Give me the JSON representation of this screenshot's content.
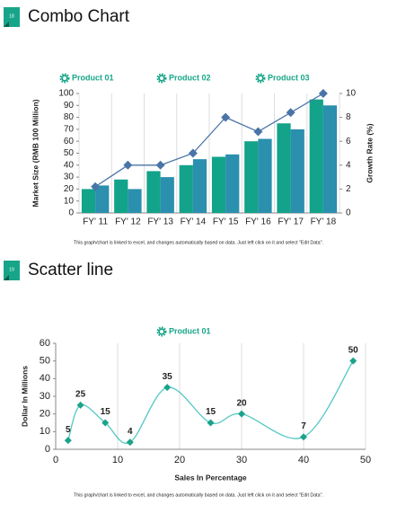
{
  "slides": [
    {
      "number": "18",
      "title": "Combo Chart",
      "note": "This graph/chart is linked to excel, and changes automatically based on data. Just left click on it and select \"Edit Data\"."
    },
    {
      "number": "19",
      "title": "Scatter line",
      "note": "This graph/chart is linked to excel, and changes automatically based on data. Just left click on it and select \"Edit Data\"."
    }
  ],
  "chart_data": [
    {
      "type": "combo",
      "ylabel": "Market Size (RMB 100 Million)",
      "y2label": "Growth Rate (%)",
      "categories": [
        "FY' 11",
        "FY' 12",
        "FY' 13",
        "FY' 14",
        "FY' 15",
        "FY' 16",
        "FY' 17",
        "FY' 18"
      ],
      "series": [
        {
          "name": "Product 01",
          "type": "bar",
          "color": "#12a38a",
          "values": [
            20,
            28,
            35,
            40,
            47,
            60,
            75,
            95
          ]
        },
        {
          "name": "Product 02",
          "type": "bar",
          "color": "#2b8fae",
          "values": [
            23,
            20,
            30,
            45,
            49,
            62,
            70,
            90
          ]
        },
        {
          "name": "Product 03",
          "type": "line",
          "axis": "y2",
          "color": "#4a74a8",
          "values": [
            2.2,
            4,
            4,
            5,
            8,
            6.8,
            8.4,
            10
          ]
        }
      ],
      "ylim": [
        0,
        100
      ],
      "yticks": [
        0,
        10,
        20,
        30,
        40,
        50,
        60,
        70,
        80,
        90,
        100
      ],
      "y2lim": [
        0,
        10
      ],
      "y2ticks": [
        0,
        2,
        4,
        6,
        8,
        10
      ],
      "grid": true
    },
    {
      "type": "scatter",
      "smooth": true,
      "xlabel": "Sales In Percentage",
      "ylabel": "Dollar In Millions",
      "series": [
        {
          "name": "Product 01",
          "line_color": "#52c7c3",
          "color": "#1aa38a",
          "x": [
            2,
            4,
            8,
            12,
            18,
            25,
            30,
            40,
            48
          ],
          "values": [
            5,
            25,
            15,
            4,
            35,
            15,
            20,
            7,
            50
          ]
        }
      ],
      "xlim": [
        0,
        50
      ],
      "xticks": [
        0,
        10,
        20,
        30,
        40,
        50
      ],
      "ylim": [
        0,
        60
      ],
      "yticks": [
        0,
        10,
        20,
        30,
        40,
        50,
        60
      ],
      "grid": true
    }
  ]
}
